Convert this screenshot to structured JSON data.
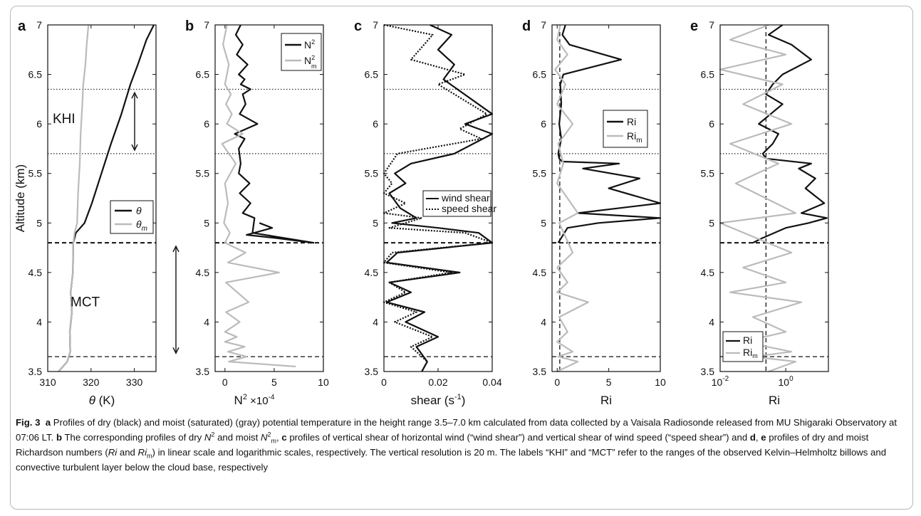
{
  "chart_data": [
    {
      "panel": "a",
      "type": "line",
      "xlabel": "θ (K)",
      "ylabel": "Altitude (km)",
      "xlim": [
        310,
        335
      ],
      "ylim": [
        3.5,
        7
      ],
      "xticks": [
        "310",
        "320",
        "330"
      ],
      "yticks": [
        "3.5",
        "4",
        "4.5",
        "5",
        "5.5",
        "6",
        "6.5",
        "7"
      ],
      "legend": [
        "θ",
        "θm"
      ],
      "legend_position": "center-right",
      "annotations": [
        "KHI",
        "MCT"
      ],
      "series": [
        {
          "name": "θ",
          "color": "#111111",
          "x": [
            312.5,
            314.5,
            315.2,
            315.1,
            315.6,
            315.3,
            315.8,
            315.9,
            316.5,
            318.5,
            320.2,
            322.4,
            324.6,
            327.0,
            329.1,
            330.8,
            332.8,
            334.5
          ],
          "y": [
            3.5,
            3.6,
            3.7,
            3.9,
            4.1,
            4.3,
            4.5,
            4.8,
            4.9,
            5.0,
            5.2,
            5.5,
            5.8,
            6.1,
            6.4,
            6.6,
            6.85,
            7.0
          ]
        },
        {
          "name": "θm",
          "color": "#bbbbbb",
          "x": [
            312.5,
            314.5,
            315.2,
            315.1,
            315.6,
            315.3,
            315.8,
            315.9,
            316.2,
            316.8,
            317.0,
            317.4,
            317.6,
            318.0,
            318.2,
            318.7,
            319.0,
            319.4
          ],
          "y": [
            3.5,
            3.6,
            3.7,
            3.9,
            4.1,
            4.3,
            4.5,
            4.8,
            4.9,
            5.0,
            5.3,
            5.6,
            5.9,
            6.2,
            6.4,
            6.6,
            6.8,
            7.0
          ]
        }
      ]
    },
    {
      "panel": "b",
      "type": "line",
      "xlabel": "N²",
      "xlabel_extra": "×10⁻⁴",
      "xlim": [
        -1,
        10
      ],
      "ylim": [
        3.5,
        7
      ],
      "xticks": [
        "0",
        "5",
        "10"
      ],
      "yticks": [
        "3.5",
        "4",
        "4.5",
        "5",
        "5.5",
        "6",
        "6.5",
        "7"
      ],
      "legend": [
        "N²",
        "N²m"
      ],
      "legend_position": "top-right",
      "series": [
        {
          "name": "N²",
          "color": "#111111",
          "x": [
            1.6,
            1.1,
            1.8,
            1.2,
            2.3,
            1.4,
            2.0,
            1.6,
            2.6,
            1.8,
            2.1,
            1.5,
            3.3,
            1.0,
            2.0,
            1.4,
            1.6,
            1.4,
            2.5,
            1.5,
            2.6,
            1.8,
            3.0,
            2.8,
            9.0,
            5.0,
            2.2,
            4.8,
            3.5
          ],
          "y": [
            7.0,
            6.9,
            6.8,
            6.7,
            6.6,
            6.5,
            6.45,
            6.4,
            6.35,
            6.3,
            6.2,
            6.1,
            6.0,
            5.9,
            5.85,
            5.75,
            5.6,
            5.5,
            5.4,
            5.3,
            5.2,
            5.1,
            5.05,
            4.9,
            4.8,
            4.85,
            4.88,
            4.95,
            5.0
          ]
        },
        {
          "name": "N²m",
          "color": "#bbbbbb",
          "x": [
            0.2,
            -0.2,
            0.4,
            0.0,
            0.6,
            0.1,
            0.7,
            0.2,
            1.8,
            -0.3,
            1.1,
            0.0,
            0.3,
            -0.1,
            0.5,
            0.0,
            2.1,
            0.3,
            5.5,
            0.1,
            2.4,
            0.1,
            1.5,
            0.0,
            1.2,
            0.0,
            2.0,
            0.3,
            2.2,
            0.4,
            7.2
          ],
          "y": [
            7.0,
            6.8,
            6.6,
            6.4,
            6.3,
            6.2,
            6.1,
            6.0,
            5.9,
            5.8,
            5.6,
            5.4,
            5.2,
            5.0,
            4.9,
            4.8,
            4.7,
            4.6,
            4.5,
            4.4,
            4.2,
            4.1,
            4.0,
            3.9,
            3.85,
            3.8,
            3.75,
            3.7,
            3.65,
            3.6,
            3.55
          ]
        }
      ]
    },
    {
      "panel": "c",
      "type": "line",
      "xlabel": "shear (s⁻¹)",
      "xlim": [
        0,
        0.04
      ],
      "ylim": [
        3.5,
        7
      ],
      "xticks": [
        "0",
        "0.02",
        "0.04"
      ],
      "yticks": [
        "3.5",
        "4",
        "4.5",
        "5",
        "5.5",
        "6",
        "6.5",
        "7"
      ],
      "legend": [
        "wind shear",
        "speed shear"
      ],
      "legend_position": "center-right",
      "series": [
        {
          "name": "wind shear",
          "color": "#111111",
          "x": [
            0.017,
            0.025,
            0.02,
            0.026,
            0.022,
            0.04,
            0.03,
            0.04,
            0.026,
            0.01,
            0.004,
            0.008,
            0.002,
            0.006,
            0.012,
            0.003,
            0.02,
            0.035,
            0.04,
            0.005,
            0.001,
            0.028,
            0.002,
            0.01,
            0.001,
            0.015,
            0.008,
            0.02,
            0.012,
            0.016,
            0.014
          ],
          "y": [
            7.0,
            6.9,
            6.75,
            6.6,
            6.45,
            6.1,
            6.0,
            5.9,
            5.7,
            5.6,
            5.5,
            5.4,
            5.3,
            5.15,
            5.05,
            5.0,
            4.95,
            4.9,
            4.8,
            4.7,
            4.6,
            4.5,
            4.4,
            4.3,
            4.2,
            4.1,
            4.0,
            3.85,
            3.75,
            3.6,
            3.5
          ]
        },
        {
          "name": "speed shear",
          "color": "#111111",
          "x": [
            0.0,
            0.018,
            0.01,
            0.03,
            0.02,
            0.038,
            0.028,
            0.036,
            0.005,
            0.0,
            0.003,
            0.0,
            0.008,
            0.0,
            0.014,
            0.002,
            0.03,
            0.04,
            0.003,
            0.0,
            0.025,
            0.002,
            0.008,
            0.0,
            0.012,
            0.004,
            0.018,
            0.01,
            0.016,
            0.014
          ],
          "y": [
            7.0,
            6.9,
            6.65,
            6.5,
            6.4,
            6.1,
            5.95,
            5.85,
            5.7,
            5.5,
            5.4,
            5.3,
            5.2,
            5.1,
            5.05,
            4.95,
            4.9,
            4.8,
            4.7,
            4.6,
            4.5,
            4.4,
            4.3,
            4.2,
            4.1,
            4.0,
            3.85,
            3.75,
            3.6,
            3.5
          ]
        }
      ]
    },
    {
      "panel": "d",
      "type": "line",
      "xlabel": "Ri",
      "xlim": [
        -0.5,
        10
      ],
      "ylim": [
        3.5,
        7
      ],
      "xticks": [
        "0",
        "5",
        "10"
      ],
      "yticks": [
        "3.5",
        "4",
        "4.5",
        "5",
        "5.5",
        "6",
        "6.5",
        "7"
      ],
      "legend": [
        "Ri",
        "Rim"
      ],
      "legend_position": "center-right",
      "series": [
        {
          "name": "Ri",
          "color": "#111111",
          "x": [
            0.8,
            0.5,
            1.2,
            6.2,
            0.6,
            0.3,
            0.4,
            0.2,
            0.4,
            0.1,
            0.2,
            0.5,
            6.0,
            2.5,
            8.0,
            5.0,
            10.0,
            2.0,
            10.0,
            4.0,
            1.0,
            0.4,
            0.1
          ],
          "y": [
            7.0,
            6.9,
            6.8,
            6.65,
            6.5,
            6.4,
            6.2,
            6.0,
            5.85,
            5.7,
            5.65,
            5.62,
            5.6,
            5.55,
            5.45,
            5.35,
            5.2,
            5.1,
            5.05,
            5.0,
            4.95,
            4.85,
            4.8
          ]
        },
        {
          "name": "Rim",
          "color": "#bbbbbb",
          "x": [
            0.3,
            0.0,
            1.0,
            -0.2,
            0.8,
            0.0,
            1.5,
            0.1,
            0.6,
            0.0,
            2.0,
            0.2,
            1.5,
            0.0,
            1.0,
            0.0,
            3.0,
            0.2,
            1.0,
            0.0,
            1.5,
            0.1,
            2.0,
            0.0
          ],
          "y": [
            7.0,
            6.85,
            6.7,
            6.55,
            6.4,
            6.2,
            6.0,
            5.8,
            5.6,
            5.4,
            5.1,
            5.0,
            4.7,
            4.55,
            4.4,
            4.3,
            4.2,
            4.05,
            3.9,
            3.8,
            3.7,
            3.65,
            3.6,
            3.5
          ]
        }
      ]
    },
    {
      "panel": "e",
      "type": "line",
      "xlabel": "Ri",
      "xscale": "log",
      "xlim": [
        0.01,
        20
      ],
      "ylim": [
        3.5,
        7
      ],
      "xticks": [
        "10",
        "10"
      ],
      "xtick_exponents": [
        "-2",
        "0"
      ],
      "yticks": [
        "3.5",
        "4",
        "4.5",
        "5",
        "5.5",
        "6",
        "6.5",
        "7"
      ],
      "legend": [
        "Ri",
        "Rim"
      ],
      "legend_position": "bottom-left",
      "series": [
        {
          "name": "Ri",
          "color": "#111111",
          "x": [
            0.8,
            0.3,
            1.5,
            6.0,
            0.8,
            0.4,
            0.25,
            0.8,
            0.15,
            0.6,
            0.4,
            0.2,
            0.25,
            6.0,
            2.5,
            8.0,
            4.0,
            15.0,
            3.0,
            18.0,
            5.0,
            1.0,
            0.2,
            0.1
          ],
          "y": [
            7.0,
            6.9,
            6.8,
            6.65,
            6.5,
            6.4,
            6.3,
            6.2,
            6.0,
            5.9,
            5.8,
            5.7,
            5.65,
            5.6,
            5.55,
            5.45,
            5.35,
            5.2,
            5.1,
            5.05,
            5.0,
            4.95,
            4.85,
            4.8
          ]
        },
        {
          "name": "Rim",
          "color": "#bbbbbb",
          "x": [
            0.3,
            0.02,
            1.0,
            0.01,
            0.8,
            0.05,
            1.5,
            0.02,
            0.6,
            0.03,
            2.0,
            0.01,
            1.5,
            0.05,
            1.0,
            0.02,
            3.0,
            0.1,
            1.0,
            0.05,
            1.5,
            0.1,
            2.0,
            0.3
          ],
          "y": [
            7.0,
            6.85,
            6.7,
            6.55,
            6.4,
            6.2,
            6.0,
            5.8,
            5.6,
            5.4,
            5.1,
            5.0,
            4.7,
            4.55,
            4.4,
            4.3,
            4.2,
            4.05,
            3.9,
            3.8,
            3.7,
            3.65,
            3.6,
            3.5
          ]
        }
      ]
    }
  ],
  "dotted_lines_km": [
    5.7,
    6.35
  ],
  "dashed_lines_km": [
    3.65,
    4.8
  ],
  "caption": {
    "fig": "Fig. 3",
    "a": "a",
    "a_text": " Profiles of dry (black) and moist (saturated) (gray) potential temperature in the height range 3.5–7.0 km calculated from data collected by a Vaisala Radiosonde released from MU Shigaraki Observatory at 07:06 LT. ",
    "b": "b",
    "b_text": " The corresponding profiles of dry ",
    "n": "N",
    "two": "2",
    "b_text2": " and moist ",
    "m": "m",
    "c": "c",
    "c_text": " profiles of vertical shear of horizontal wind (“wind shear”) and vertical shear of wind speed (“speed shear”) and ",
    "d": "d",
    "comma": ", ",
    "e": "e",
    "de_text": " profiles of dry and moist Richardson numbers (",
    "ri": "Ri",
    "and": " and ",
    "rest": ") in linear scale and logarithmic scales, respectively. The vertical resolution is 20 m. The labels “KHI” and “MCT” refer to the ranges of the observed Kelvin–Helmholtz billows and convective turbulent layer below the cloud base, respectively"
  }
}
